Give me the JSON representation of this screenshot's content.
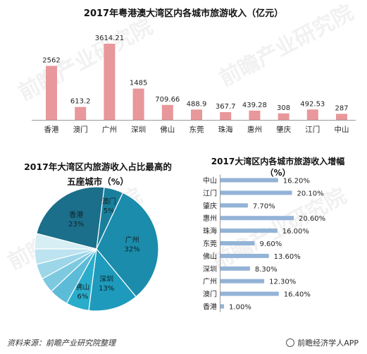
{
  "watermark": "前瞻产业研究院",
  "footer": {
    "source": "资料来源：前瞻产业研究院整理",
    "brand": "前瞻经济学人APP"
  },
  "chart_data": [
    {
      "type": "bar",
      "title": "2017年粤港澳大湾区内各城市旅游收入（亿元）",
      "categories": [
        "香港",
        "澳门",
        "广州",
        "深圳",
        "佛山",
        "东莞",
        "珠海",
        "惠州",
        "肇庆",
        "江门",
        "中山"
      ],
      "values": [
        2562,
        613.2,
        3614.21,
        1485,
        709.66,
        488.9,
        367.7,
        439.28,
        308,
        492.53,
        287
      ],
      "value_labels": [
        "2562",
        "613.2",
        "3614.21",
        "1485",
        "709.66",
        "488.9",
        "367.7",
        "439.28",
        "308",
        "492.53",
        "287"
      ],
      "colors": {
        "bar": "#e8979b"
      },
      "grid": false,
      "legend": "none"
    },
    {
      "type": "pie",
      "title": "2017年大湾区内旅游收入占比最高的五座城市（%）",
      "title_lines": [
        "2017年大湾区内旅游收入占比最高的",
        "五座城市（%）"
      ],
      "slices": [
        {
          "label": "香港",
          "value": 23,
          "text": "23%",
          "color": "#1b6f8a"
        },
        {
          "label": "澳门",
          "value": 5,
          "text": "5%",
          "color": "#1a7f9c"
        },
        {
          "label": "广州",
          "value": 32,
          "text": "32%",
          "color": "#1b8cab"
        },
        {
          "label": "深圳",
          "value": 13,
          "text": "13%",
          "color": "#1e9bbc"
        },
        {
          "label": "佛山",
          "value": 6,
          "text": "6%",
          "color": "#2aaccb"
        },
        {
          "label": "",
          "value": 5,
          "text": "",
          "color": "#5cbcd7"
        },
        {
          "label": "",
          "value": 4,
          "text": "",
          "color": "#7cc9e0"
        },
        {
          "label": "",
          "value": 4,
          "text": "",
          "color": "#9cd6e8"
        },
        {
          "label": "",
          "value": 4,
          "text": "",
          "color": "#bce3ef"
        },
        {
          "label": "",
          "value": 4,
          "text": "",
          "color": "#d7eef5"
        }
      ]
    },
    {
      "type": "bar",
      "orientation": "horizontal",
      "title": "2017大湾区内各城市旅游收入增幅（%）",
      "title_lines": [
        "2017大湾区内各城市旅游收入增幅",
        "（%）"
      ],
      "categories": [
        "中山",
        "江门",
        "肇庆",
        "惠州",
        "珠海",
        "东莞",
        "佛山",
        "深圳",
        "广州",
        "澳门",
        "香港"
      ],
      "values": [
        16.2,
        20.1,
        7.7,
        20.6,
        16.0,
        9.6,
        13.6,
        8.3,
        12.3,
        16.4,
        1.0
      ],
      "value_labels": [
        "16.20%",
        "20.10%",
        "7.70%",
        "20.60%",
        "16.00%",
        "9.60%",
        "13.60%",
        "8.30%",
        "12.30%",
        "16.40%",
        "1.00%"
      ],
      "colors": {
        "bar": "#93b3d7"
      },
      "grid": false,
      "legend": "none"
    }
  ]
}
